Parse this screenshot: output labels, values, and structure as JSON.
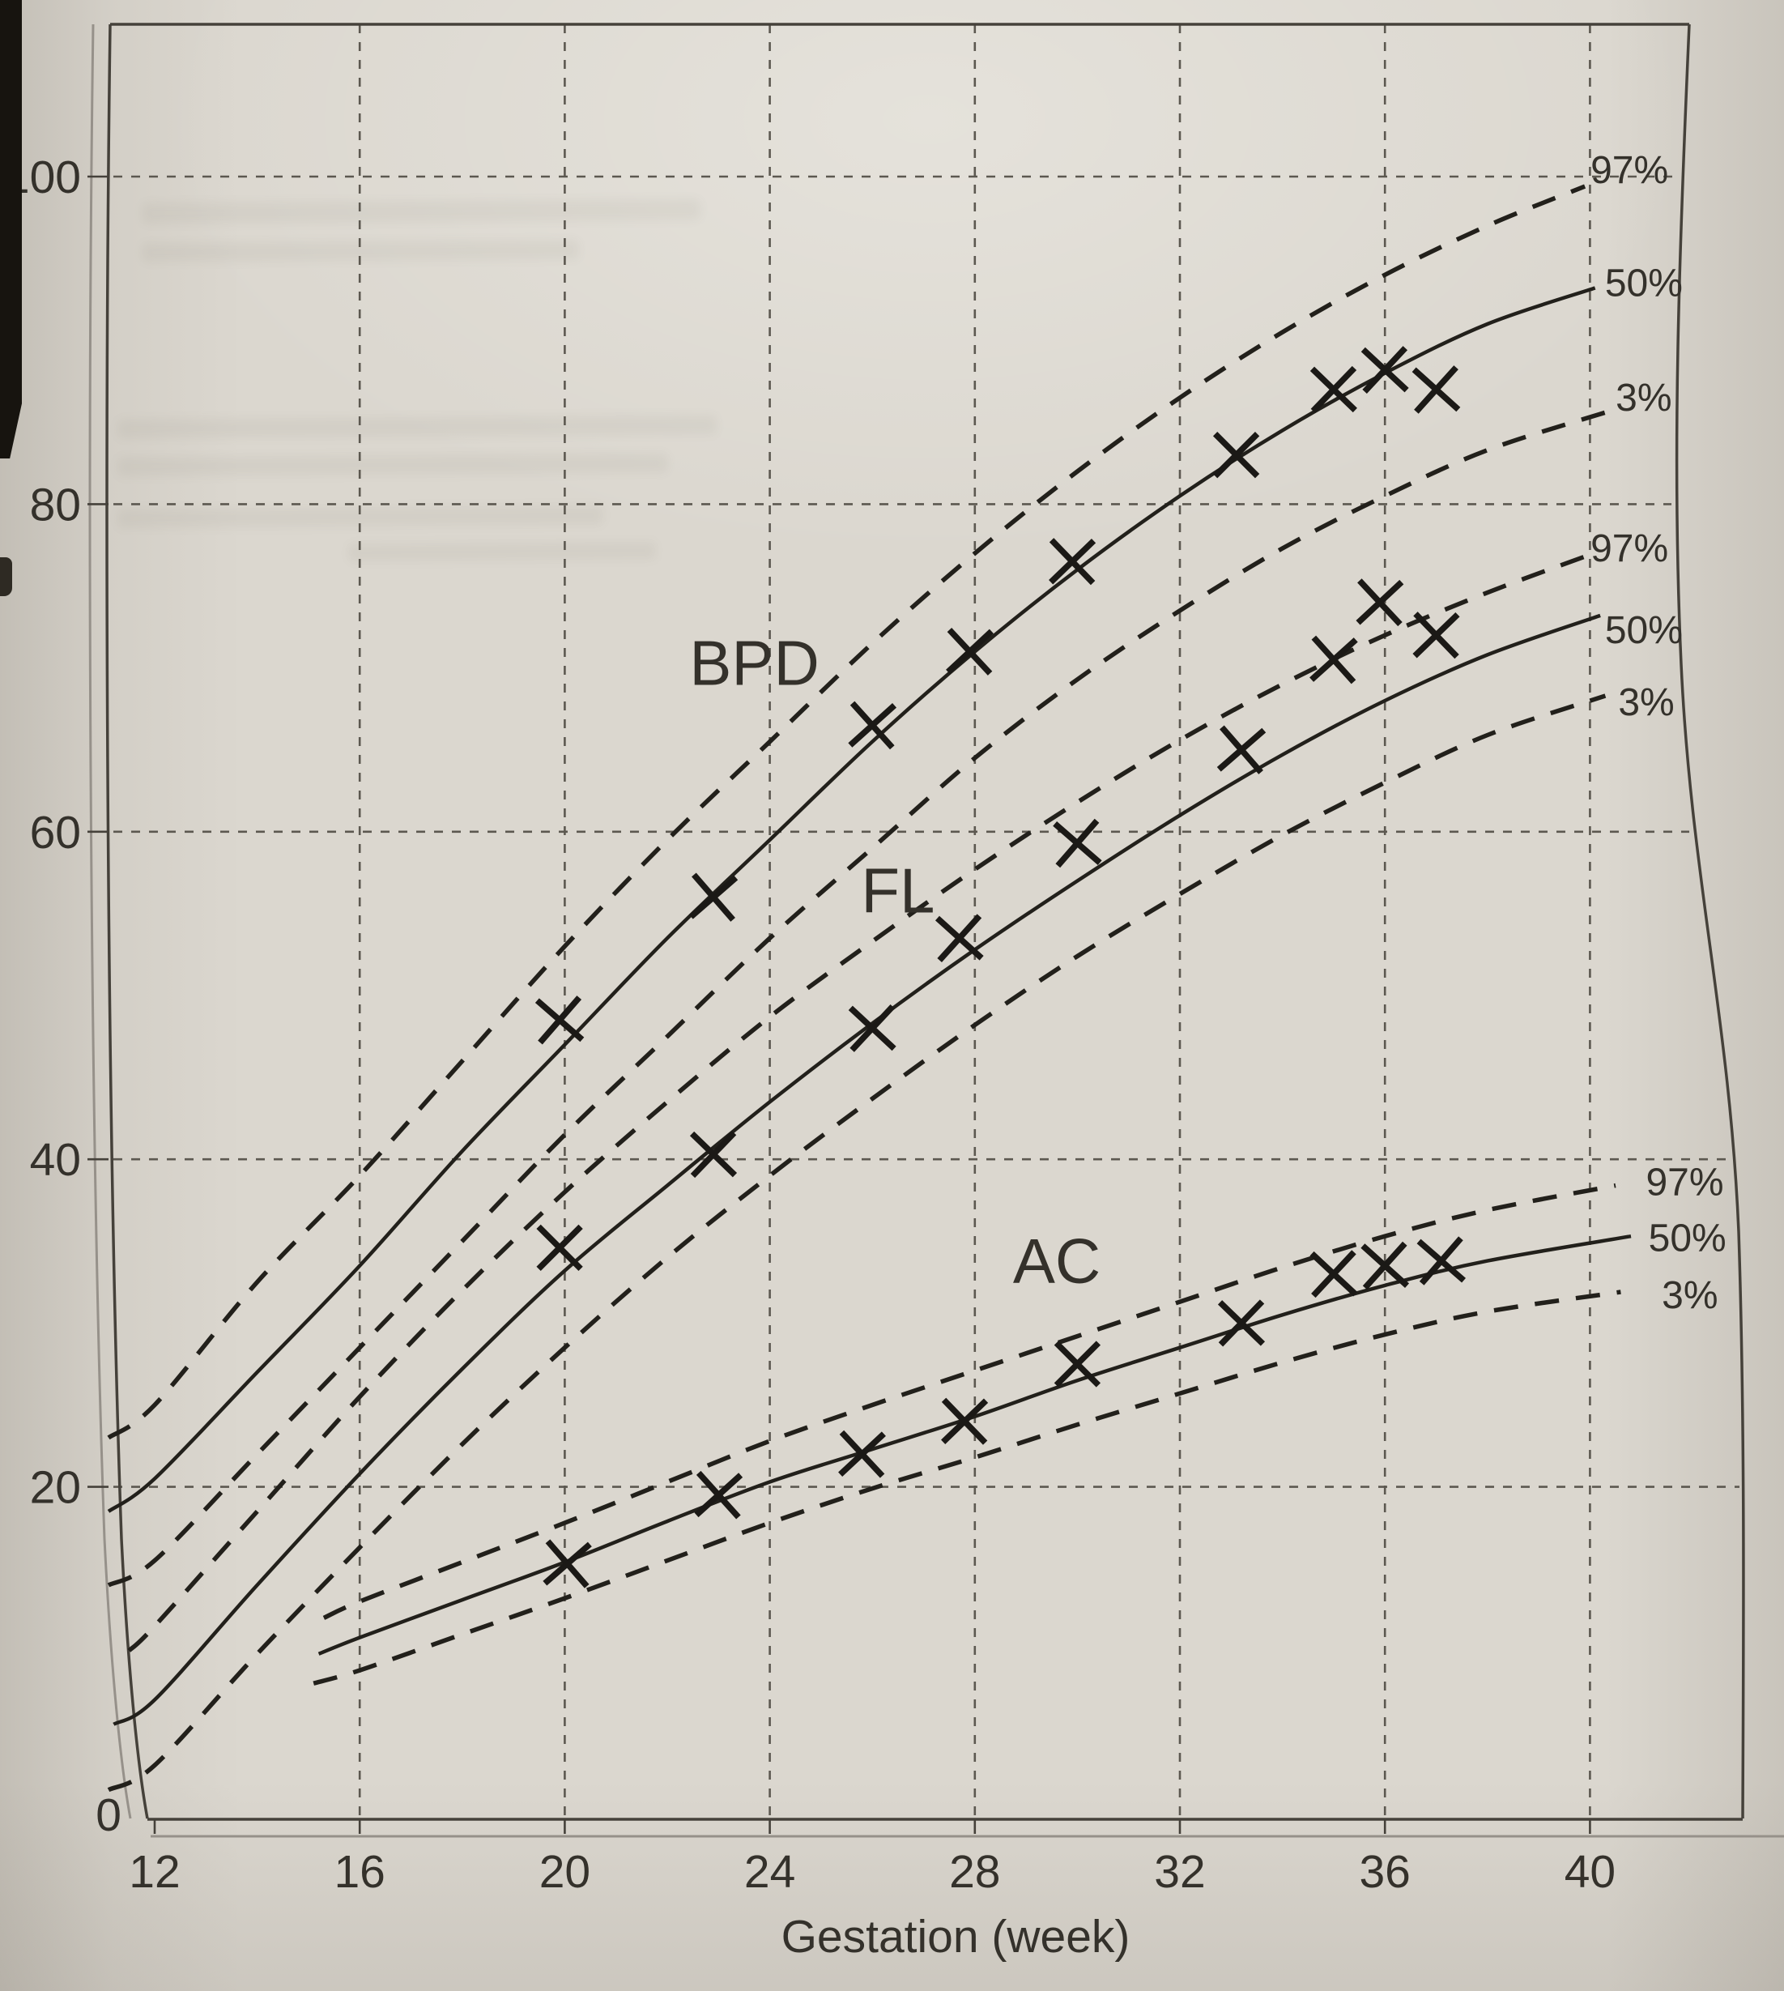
{
  "chart_data": {
    "type": "line",
    "title": "",
    "xlabel": "Gestation (week)",
    "ylabel": "",
    "x_ticks": [
      12,
      16,
      20,
      24,
      28,
      32,
      36,
      40
    ],
    "y_ticks": [
      0,
      20,
      40,
      60,
      80,
      100
    ],
    "xlim": [
      11.1,
      42.2
    ],
    "ylim": [
      0,
      109
    ],
    "grid": {
      "vertical_weeks": [
        16,
        20,
        24,
        28,
        32,
        36,
        40
      ],
      "horizontal_values": [
        20,
        40,
        60,
        80,
        100
      ]
    },
    "legend_position": "right-edge-labels",
    "marker": "x",
    "series": [
      {
        "name": "BPD",
        "label_at": {
          "week": 23.7,
          "value": 70.3
        },
        "percentiles": [
          {
            "label": "97%",
            "style": "dashed",
            "label_at": {
              "week": 40.77,
              "value": 100.4
            },
            "points": [
              [
                11.1,
                23
              ],
              [
                12,
                25
              ],
              [
                14,
                32.5
              ],
              [
                16,
                39
              ],
              [
                18,
                46
              ],
              [
                20,
                53
              ],
              [
                22,
                59.5
              ],
              [
                24,
                65.5
              ],
              [
                26,
                71.5
              ],
              [
                28,
                77
              ],
              [
                30,
                82
              ],
              [
                32,
                86.5
              ],
              [
                34,
                90.5
              ],
              [
                36,
                94
              ],
              [
                38,
                97
              ],
              [
                39.9,
                99.4
              ]
            ]
          },
          {
            "label": "50%",
            "style": "solid",
            "label_at": {
              "week": 41.05,
              "value": 93.5
            },
            "points": [
              [
                11.1,
                18.5
              ],
              [
                12,
                20.5
              ],
              [
                14,
                27
              ],
              [
                16,
                33.5
              ],
              [
                18,
                40.5
              ],
              [
                20,
                47
              ],
              [
                22,
                53.5
              ],
              [
                24,
                59.5
              ],
              [
                26,
                65.5
              ],
              [
                28,
                71
              ],
              [
                30,
                76
              ],
              [
                32,
                80.5
              ],
              [
                34,
                84.5
              ],
              [
                36,
                88
              ],
              [
                38,
                91
              ],
              [
                40.1,
                93.2
              ]
            ]
          },
          {
            "label": "3%",
            "style": "dashed",
            "label_at": {
              "week": 41.05,
              "value": 86.5
            },
            "points": [
              [
                11.1,
                14
              ],
              [
                12,
                15.5
              ],
              [
                14,
                22
              ],
              [
                16,
                28.5
              ],
              [
                18,
                35
              ],
              [
                20,
                41.5
              ],
              [
                22,
                47.5
              ],
              [
                24,
                53.5
              ],
              [
                26,
                59
              ],
              [
                28,
                64.5
              ],
              [
                30,
                69.3
              ],
              [
                32,
                73.5
              ],
              [
                34,
                77.3
              ],
              [
                36,
                80.5
              ],
              [
                38,
                83.3
              ],
              [
                40.3,
                85.6
              ]
            ]
          }
        ],
        "measurements": [
          [
            19.9,
            48.5
          ],
          [
            22.9,
            56
          ],
          [
            26,
            66.5
          ],
          [
            27.9,
            71
          ],
          [
            29.9,
            76.5
          ],
          [
            33.1,
            83
          ],
          [
            35,
            87
          ],
          [
            36,
            88.2
          ],
          [
            37,
            87
          ]
        ]
      },
      {
        "name": "FL",
        "label_at": {
          "week": 26.5,
          "value": 56.4
        },
        "percentiles": [
          {
            "label": "97%",
            "style": "dashed",
            "label_at": {
              "week": 40.77,
              "value": 77.3
            },
            "points": [
              [
                11.5,
                10
              ],
              [
                12,
                11.5
              ],
              [
                14,
                18.5
              ],
              [
                16,
                25.5
              ],
              [
                18,
                32
              ],
              [
                20,
                38
              ],
              [
                22,
                43.5
              ],
              [
                24,
                48.7
              ],
              [
                26,
                53.3
              ],
              [
                28,
                57.7
              ],
              [
                30,
                61.8
              ],
              [
                32,
                65.6
              ],
              [
                34,
                69
              ],
              [
                36,
                72
              ],
              [
                38,
                74.6
              ],
              [
                39.9,
                76.8
              ]
            ]
          },
          {
            "label": "50%",
            "style": "solid",
            "label_at": {
              "week": 41.05,
              "value": 72.3
            },
            "points": [
              [
                11.2,
                5.5
              ],
              [
                12,
                7
              ],
              [
                14,
                14
              ],
              [
                16,
                20.8
              ],
              [
                18,
                27.2
              ],
              [
                20,
                33.2
              ],
              [
                22,
                38.4
              ],
              [
                24,
                43.5
              ],
              [
                26,
                48.3
              ],
              [
                28,
                52.8
              ],
              [
                30,
                57
              ],
              [
                32,
                61
              ],
              [
                34,
                64.7
              ],
              [
                36,
                68
              ],
              [
                38,
                70.8
              ],
              [
                40.2,
                73.2
              ]
            ]
          },
          {
            "label": "3%",
            "style": "dashed",
            "label_at": {
              "week": 41.1,
              "value": 67.9
            },
            "points": [
              [
                11.1,
                1.5
              ],
              [
                12,
                3
              ],
              [
                14,
                9.8
              ],
              [
                16,
                16.3
              ],
              [
                18,
                22.6
              ],
              [
                20,
                28.5
              ],
              [
                22,
                34
              ],
              [
                24,
                39
              ],
              [
                26,
                43.7
              ],
              [
                28,
                48.2
              ],
              [
                30,
                52.4
              ],
              [
                32,
                56.2
              ],
              [
                34,
                59.8
              ],
              [
                36,
                63
              ],
              [
                38,
                65.9
              ],
              [
                40.3,
                68.3
              ]
            ]
          }
        ],
        "measurements": [
          [
            19.9,
            34.6
          ],
          [
            22.9,
            40.3
          ],
          [
            26,
            48
          ],
          [
            27.7,
            53.5
          ],
          [
            30,
            59.3
          ],
          [
            33.2,
            65
          ],
          [
            35,
            70.5
          ],
          [
            35.9,
            74
          ],
          [
            37,
            72
          ]
        ]
      },
      {
        "name": "AC",
        "label_at": {
          "week": 29.6,
          "value": 33.8
        },
        "percentiles": [
          {
            "label": "97%",
            "style": "dashed",
            "label_at": {
              "week": 41.85,
              "value": 38.6
            },
            "points": [
              [
                15.3,
                12
              ],
              [
                16,
                13
              ],
              [
                18,
                15.4
              ],
              [
                20,
                17.8
              ],
              [
                22,
                20.3
              ],
              [
                24,
                22.8
              ],
              [
                26,
                25
              ],
              [
                28,
                27.1
              ],
              [
                30,
                29.2
              ],
              [
                32,
                31.3
              ],
              [
                34,
                33.4
              ],
              [
                36,
                35.3
              ],
              [
                38,
                36.9
              ],
              [
                40.5,
                38.4
              ]
            ]
          },
          {
            "label": "50%",
            "style": "solid",
            "label_at": {
              "week": 41.9,
              "value": 35.2
            },
            "points": [
              [
                15.2,
                9.8
              ],
              [
                16,
                10.8
              ],
              [
                18,
                13.1
              ],
              [
                20,
                15.4
              ],
              [
                22,
                17.9
              ],
              [
                24,
                20.3
              ],
              [
                26,
                22.3
              ],
              [
                28,
                24.3
              ],
              [
                30,
                26.5
              ],
              [
                32,
                28.5
              ],
              [
                34,
                30.5
              ],
              [
                36,
                32.3
              ],
              [
                38,
                33.8
              ],
              [
                40.8,
                35.3
              ]
            ]
          },
          {
            "label": "3%",
            "style": "dashed",
            "label_at": {
              "week": 41.95,
              "value": 31.7
            },
            "points": [
              [
                15.1,
                8
              ],
              [
                16,
                8.8
              ],
              [
                18,
                11
              ],
              [
                20,
                13.2
              ],
              [
                22,
                15.5
              ],
              [
                24,
                17.8
              ],
              [
                26,
                19.9
              ],
              [
                28,
                21.8
              ],
              [
                30,
                23.8
              ],
              [
                32,
                25.7
              ],
              [
                34,
                27.6
              ],
              [
                36,
                29.3
              ],
              [
                38,
                30.7
              ],
              [
                40.6,
                31.9
              ]
            ]
          }
        ],
        "measurements": [
          [
            20.05,
            15.3
          ],
          [
            23,
            19.5
          ],
          [
            25.8,
            22
          ],
          [
            27.8,
            24
          ],
          [
            30,
            27.5
          ],
          [
            33.2,
            30
          ],
          [
            35,
            33
          ],
          [
            36,
            33.5
          ],
          [
            37.1,
            33.8
          ]
        ]
      }
    ]
  },
  "colors": {
    "paper": "#dbd7cf",
    "ink": "#22201b",
    "marker": "#1b1916",
    "grid": "#5c5850",
    "border": "#45413a",
    "border_shadow": "#96918a",
    "text": "#34312b"
  }
}
